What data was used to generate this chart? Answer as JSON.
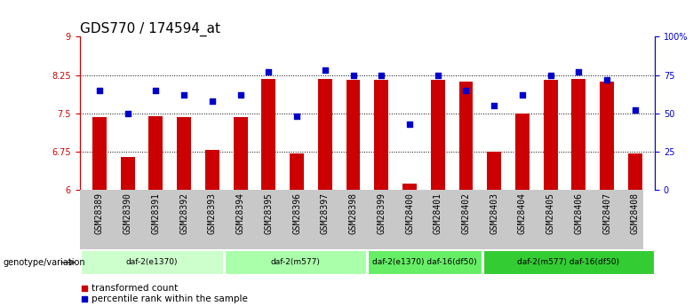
{
  "title": "GDS770 / 174594_at",
  "samples": [
    "GSM28389",
    "GSM28390",
    "GSM28391",
    "GSM28392",
    "GSM28393",
    "GSM28394",
    "GSM28395",
    "GSM28396",
    "GSM28397",
    "GSM28398",
    "GSM28399",
    "GSM28400",
    "GSM28401",
    "GSM28402",
    "GSM28403",
    "GSM28404",
    "GSM28405",
    "GSM28406",
    "GSM28407",
    "GSM28408"
  ],
  "bar_values": [
    7.43,
    6.65,
    7.44,
    7.43,
    6.78,
    7.43,
    8.18,
    6.72,
    8.18,
    8.16,
    8.15,
    6.12,
    8.15,
    8.12,
    6.75,
    7.5,
    8.15,
    8.18,
    8.12,
    6.72
  ],
  "dot_values": [
    65,
    50,
    65,
    62,
    58,
    62,
    77,
    48,
    78,
    75,
    75,
    43,
    75,
    65,
    55,
    62,
    75,
    77,
    72,
    52
  ],
  "ylim_left": [
    6.0,
    9.0
  ],
  "ylim_right": [
    0,
    100
  ],
  "yticks_left": [
    6.0,
    6.75,
    7.5,
    8.25,
    9.0
  ],
  "ytick_labels_left": [
    "6",
    "6.75",
    "7.5",
    "8.25",
    "9"
  ],
  "yticks_right": [
    0,
    25,
    50,
    75,
    100
  ],
  "ytick_labels_right": [
    "0",
    "25",
    "50",
    "75",
    "100%"
  ],
  "hlines": [
    6.75,
    7.5,
    8.25
  ],
  "bar_color": "#cc0000",
  "dot_color": "#0000cc",
  "groups": [
    {
      "label": "daf-2(e1370)",
      "start": 0,
      "end": 5,
      "color": "#ccffcc"
    },
    {
      "label": "daf-2(m577)",
      "start": 5,
      "end": 10,
      "color": "#aaffaa"
    },
    {
      "label": "daf-2(e1370) daf-16(df50)",
      "start": 10,
      "end": 14,
      "color": "#66ee66"
    },
    {
      "label": "daf-2(m577) daf-16(df50)",
      "start": 14,
      "end": 20,
      "color": "#33cc33"
    }
  ],
  "group_label": "genotype/variation",
  "legend_bar_label": "transformed count",
  "legend_dot_label": "percentile rank within the sample",
  "title_fontsize": 11,
  "tick_fontsize": 7,
  "bar_width": 0.5,
  "sample_bg_color": "#c8c8c8",
  "plot_bg": "#ffffff"
}
